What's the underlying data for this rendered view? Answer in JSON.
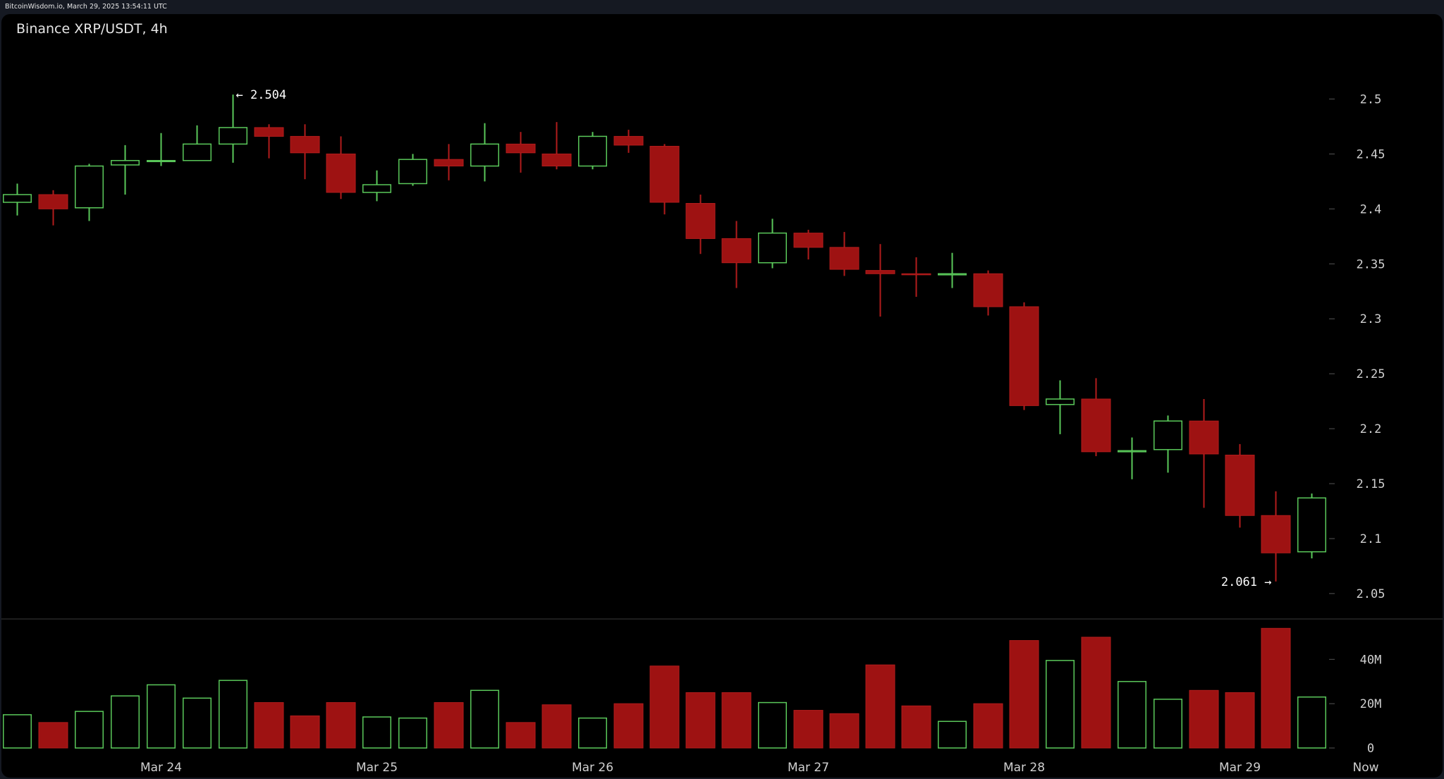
{
  "header": {
    "source_text": "BitcoinWisdom.io, March 29, 2025 13:54:11 UTC",
    "title": "Binance XRP/USDT, 4h"
  },
  "colors": {
    "background": "#000000",
    "up": "#5ac85a",
    "down": "#9e1212",
    "axis_text": "#d0d0d0",
    "separator": "#3a3a3a"
  },
  "chart_data": [
    {
      "type": "candlestick",
      "title": "Binance XRP/USDT, 4h",
      "y_ticks": [
        "2.05",
        "2.1",
        "2.15",
        "2.2",
        "2.25",
        "2.3",
        "2.35",
        "2.4",
        "2.45",
        "2.5"
      ],
      "ylim": [
        2.032,
        2.558
      ],
      "x_ticks": [
        {
          "label": "Mar 24",
          "index": 4
        },
        {
          "label": "Mar 25",
          "index": 10
        },
        {
          "label": "Mar 26",
          "index": 16
        },
        {
          "label": "Mar 27",
          "index": 22
        },
        {
          "label": "Mar 28",
          "index": 28
        },
        {
          "label": "Mar 29",
          "index": 34
        },
        {
          "label": "Now",
          "index": 37.5
        }
      ],
      "annotations": [
        {
          "text": "← 2.504",
          "index": 6,
          "value": 2.504,
          "side": "right"
        },
        {
          "text": "2.061 →",
          "index": 35,
          "value": 2.061,
          "side": "left"
        }
      ],
      "candles": [
        {
          "o": 2.406,
          "h": 2.423,
          "l": 2.394,
          "c": 2.413
        },
        {
          "o": 2.413,
          "h": 2.417,
          "l": 2.385,
          "c": 2.4
        },
        {
          "o": 2.401,
          "h": 2.441,
          "l": 2.389,
          "c": 2.439
        },
        {
          "o": 2.44,
          "h": 2.458,
          "l": 2.413,
          "c": 2.444
        },
        {
          "o": 2.444,
          "h": 2.469,
          "l": 2.439,
          "c": 2.444
        },
        {
          "o": 2.444,
          "h": 2.476,
          "l": 2.444,
          "c": 2.459
        },
        {
          "o": 2.459,
          "h": 2.504,
          "l": 2.442,
          "c": 2.474
        },
        {
          "o": 2.474,
          "h": 2.477,
          "l": 2.446,
          "c": 2.466
        },
        {
          "o": 2.466,
          "h": 2.477,
          "l": 2.427,
          "c": 2.451
        },
        {
          "o": 2.45,
          "h": 2.466,
          "l": 2.409,
          "c": 2.415
        },
        {
          "o": 2.415,
          "h": 2.435,
          "l": 2.407,
          "c": 2.422
        },
        {
          "o": 2.423,
          "h": 2.45,
          "l": 2.421,
          "c": 2.445
        },
        {
          "o": 2.445,
          "h": 2.459,
          "l": 2.426,
          "c": 2.439
        },
        {
          "o": 2.439,
          "h": 2.478,
          "l": 2.425,
          "c": 2.459
        },
        {
          "o": 2.459,
          "h": 2.47,
          "l": 2.433,
          "c": 2.451
        },
        {
          "o": 2.45,
          "h": 2.479,
          "l": 2.436,
          "c": 2.439
        },
        {
          "o": 2.439,
          "h": 2.47,
          "l": 2.436,
          "c": 2.466
        },
        {
          "o": 2.466,
          "h": 2.472,
          "l": 2.451,
          "c": 2.458
        },
        {
          "o": 2.457,
          "h": 2.459,
          "l": 2.395,
          "c": 2.406
        },
        {
          "o": 2.405,
          "h": 2.413,
          "l": 2.359,
          "c": 2.373
        },
        {
          "o": 2.373,
          "h": 2.389,
          "l": 2.328,
          "c": 2.351
        },
        {
          "o": 2.351,
          "h": 2.391,
          "l": 2.346,
          "c": 2.378
        },
        {
          "o": 2.378,
          "h": 2.381,
          "l": 2.354,
          "c": 2.365
        },
        {
          "o": 2.365,
          "h": 2.379,
          "l": 2.339,
          "c": 2.345
        },
        {
          "o": 2.344,
          "h": 2.368,
          "l": 2.302,
          "c": 2.341
        },
        {
          "o": 2.341,
          "h": 2.356,
          "l": 2.32,
          "c": 2.34
        },
        {
          "o": 2.34,
          "h": 2.36,
          "l": 2.328,
          "c": 2.341
        },
        {
          "o": 2.341,
          "h": 2.344,
          "l": 2.303,
          "c": 2.311
        },
        {
          "o": 2.311,
          "h": 2.315,
          "l": 2.217,
          "c": 2.221
        },
        {
          "o": 2.222,
          "h": 2.244,
          "l": 2.195,
          "c": 2.227
        },
        {
          "o": 2.227,
          "h": 2.246,
          "l": 2.175,
          "c": 2.179
        },
        {
          "o": 2.179,
          "h": 2.192,
          "l": 2.154,
          "c": 2.18
        },
        {
          "o": 2.181,
          "h": 2.212,
          "l": 2.16,
          "c": 2.207
        },
        {
          "o": 2.207,
          "h": 2.227,
          "l": 2.128,
          "c": 2.177
        },
        {
          "o": 2.176,
          "h": 2.186,
          "l": 2.11,
          "c": 2.121
        },
        {
          "o": 2.121,
          "h": 2.143,
          "l": 2.061,
          "c": 2.087
        },
        {
          "o": 2.088,
          "h": 2.141,
          "l": 2.082,
          "c": 2.137
        }
      ]
    },
    {
      "type": "bar",
      "title": "",
      "y_ticks": [
        {
          "label": "0",
          "value": 0
        },
        {
          "label": "20M",
          "value": 20
        },
        {
          "label": "40M",
          "value": 40
        }
      ],
      "ylim": [
        0,
        56
      ],
      "unit": "M",
      "values": [
        15,
        11.5,
        16.5,
        23.5,
        28.5,
        22.5,
        30.5,
        20.5,
        14.5,
        20.5,
        14,
        13.5,
        20.5,
        26,
        11.5,
        19.5,
        13.5,
        20,
        37,
        25,
        25,
        20.5,
        17,
        15.5,
        37.5,
        19,
        12,
        20,
        48.5,
        39.5,
        50,
        30,
        22,
        26,
        25,
        54,
        23
      ]
    }
  ]
}
